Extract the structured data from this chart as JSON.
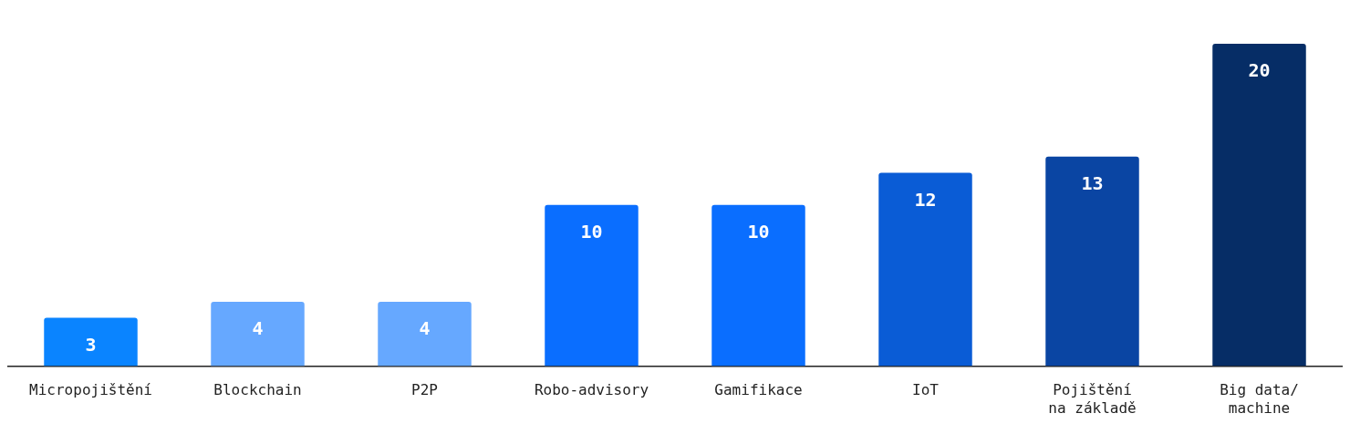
{
  "chart_data": {
    "type": "bar",
    "categories": [
      "Micropojištění",
      "Blockchain",
      "P2P",
      "Robo-advisory",
      "Gamifikace",
      "IoT",
      "Pojištění na základě",
      "Big data/ machine"
    ],
    "values": [
      3,
      4,
      4,
      10,
      10,
      12,
      13,
      20
    ],
    "colors": [
      "#0a84ff",
      "#66a8ff",
      "#66a8ff",
      "#0a6eff",
      "#0a6eff",
      "#0a5cd6",
      "#0a45a3",
      "#062d66"
    ],
    "relative": false,
    "data_labels": true,
    "grid": false,
    "legend": false
  }
}
